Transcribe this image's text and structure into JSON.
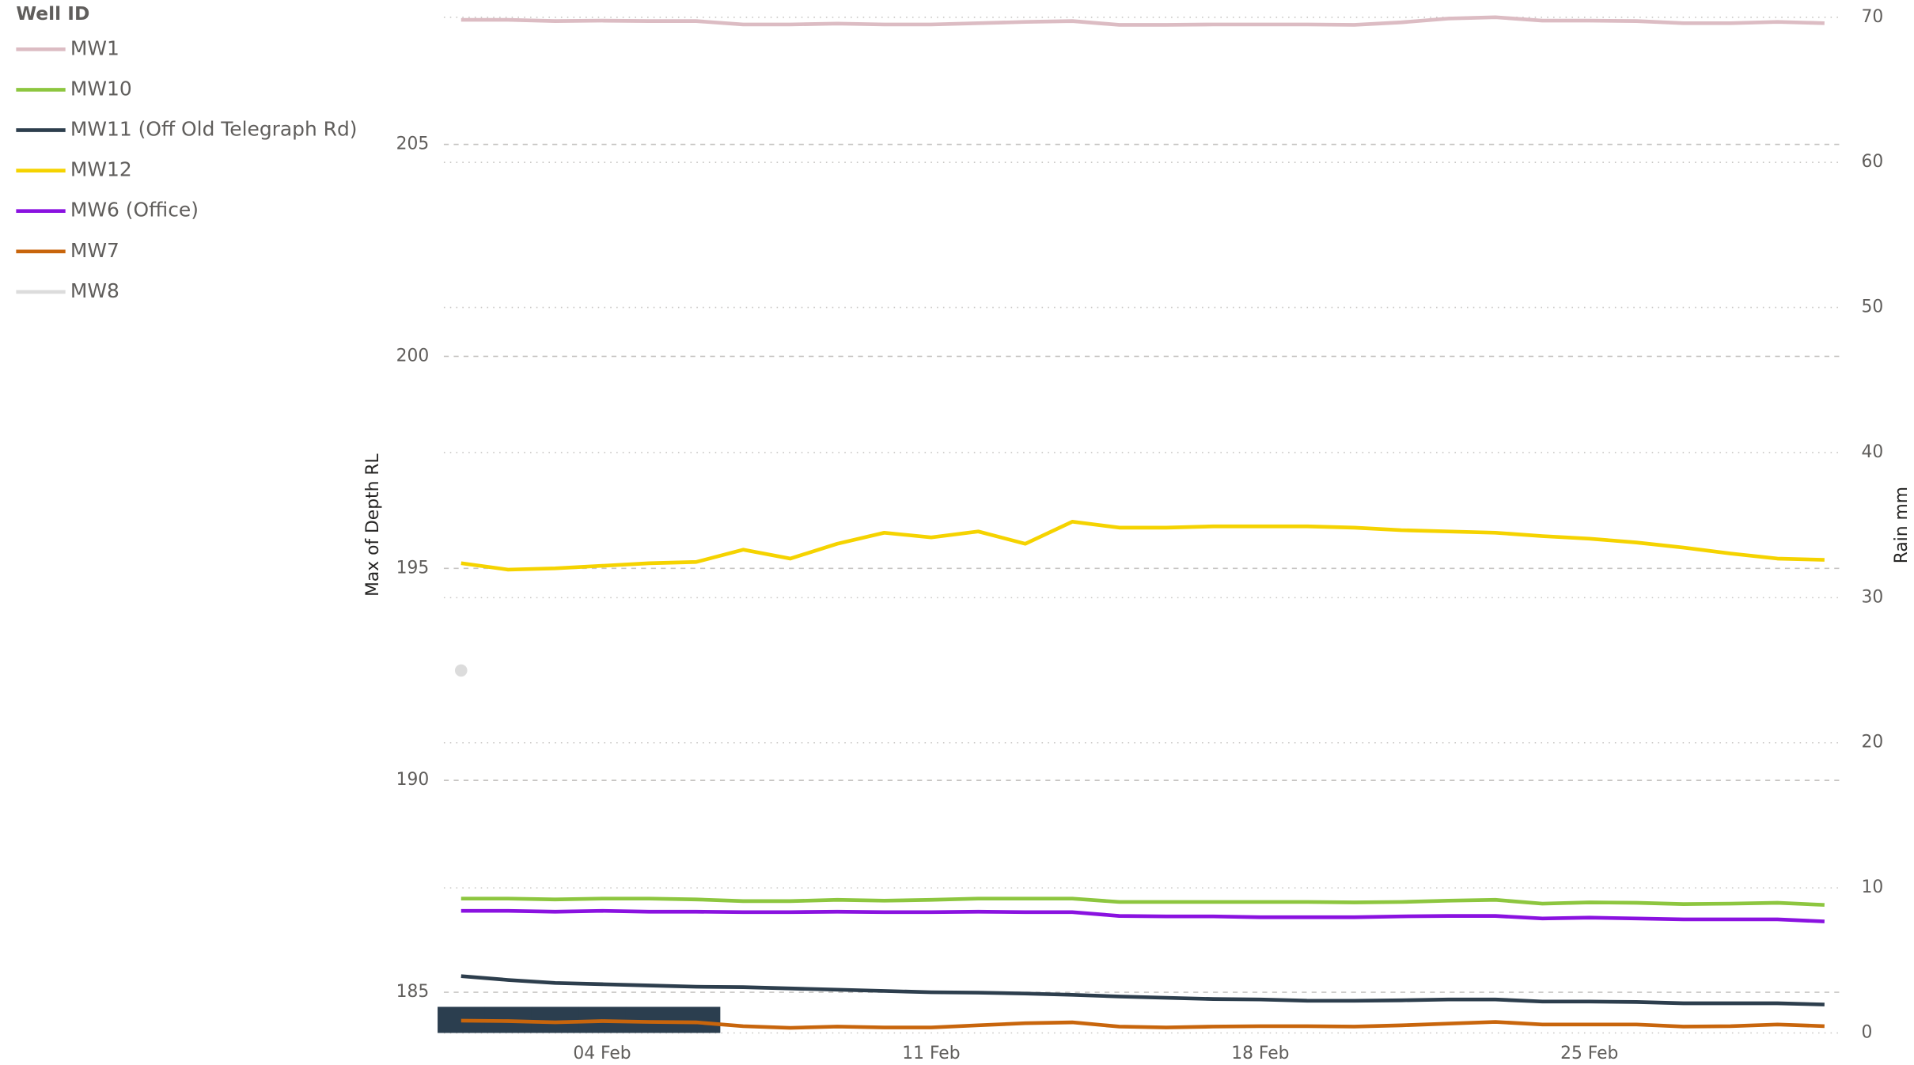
{
  "chart_data": {
    "type": "line",
    "legend_title": "Well ID",
    "ylabel": "Max of Depth RL",
    "y2label": "Rain mm",
    "categories": [
      null,
      null,
      null,
      "04 Feb",
      null,
      null,
      null,
      null,
      null,
      null,
      "11 Feb",
      null,
      null,
      null,
      null,
      null,
      null,
      "18 Feb",
      null,
      null,
      null,
      null,
      null,
      null,
      "25 Feb",
      null,
      null,
      null,
      null,
      null
    ],
    "ylim": [
      184.04,
      208
    ],
    "yticks": [
      185,
      190,
      195,
      200,
      205
    ],
    "y2lim": [
      0,
      70
    ],
    "y2ticks": [
      0,
      10,
      20,
      30,
      40,
      50,
      60,
      70
    ],
    "grid": true,
    "legend": "top-left",
    "series": [
      {
        "name": "MW1",
        "color": "#dcbcc3",
        "values": [
          207.94,
          207.94,
          207.91,
          207.92,
          207.91,
          207.91,
          207.83,
          207.83,
          207.85,
          207.83,
          207.83,
          207.86,
          207.89,
          207.91,
          207.82,
          207.82,
          207.83,
          207.83,
          207.83,
          207.82,
          207.88,
          207.97,
          208.0,
          207.92,
          207.92,
          207.91,
          207.86,
          207.86,
          207.89,
          207.86
        ]
      },
      {
        "name": "MW10",
        "color": "#8dc63f",
        "values": [
          187.21,
          187.21,
          187.19,
          187.21,
          187.21,
          187.19,
          187.15,
          187.15,
          187.18,
          187.16,
          187.18,
          187.21,
          187.21,
          187.21,
          187.13,
          187.13,
          187.13,
          187.13,
          187.13,
          187.12,
          187.13,
          187.16,
          187.18,
          187.09,
          187.12,
          187.11,
          187.08,
          187.09,
          187.11,
          187.06
        ]
      },
      {
        "name": "MW11 (Off Old Telegraph Rd)",
        "color": "#2d3e4d",
        "values": [
          185.38,
          185.29,
          185.22,
          185.19,
          185.16,
          185.13,
          185.12,
          185.09,
          185.06,
          185.03,
          185.0,
          184.99,
          184.97,
          184.94,
          184.9,
          184.87,
          184.84,
          184.83,
          184.8,
          184.8,
          184.81,
          184.83,
          184.83,
          184.78,
          184.78,
          184.77,
          184.74,
          184.74,
          184.74,
          184.71
        ]
      },
      {
        "name": "MW12",
        "color": "#f5d300",
        "values": [
          195.12,
          194.97,
          195.0,
          195.06,
          195.12,
          195.15,
          195.44,
          195.23,
          195.58,
          195.84,
          195.73,
          195.87,
          195.58,
          196.1,
          195.96,
          195.96,
          195.99,
          195.99,
          195.99,
          195.96,
          195.9,
          195.87,
          195.84,
          195.76,
          195.7,
          195.61,
          195.49,
          195.35,
          195.23,
          195.2
        ]
      },
      {
        "name": "MW6 (Office)",
        "color": "#8a12e0",
        "values": [
          186.92,
          186.92,
          186.9,
          186.92,
          186.9,
          186.9,
          186.89,
          186.89,
          186.9,
          186.89,
          186.89,
          186.9,
          186.89,
          186.89,
          186.8,
          186.79,
          186.79,
          186.77,
          186.77,
          186.77,
          186.79,
          186.8,
          186.8,
          186.74,
          186.76,
          186.74,
          186.72,
          186.72,
          186.72,
          186.67
        ]
      },
      {
        "name": "MW7",
        "color": "#c8650c",
        "values": [
          184.33,
          184.32,
          184.29,
          184.32,
          184.3,
          184.29,
          184.2,
          184.16,
          184.19,
          184.17,
          184.17,
          184.22,
          184.27,
          184.29,
          184.19,
          184.17,
          184.19,
          184.2,
          184.2,
          184.19,
          184.22,
          184.26,
          184.3,
          184.24,
          184.24,
          184.24,
          184.19,
          184.2,
          184.24,
          184.2
        ]
      },
      {
        "name": "MW8",
        "color": "#dcdcdc",
        "values": [
          192.59,
          null,
          null,
          null,
          null,
          null,
          null,
          null,
          null,
          null,
          null,
          null,
          null,
          null,
          null,
          null,
          null,
          null,
          null,
          null,
          null,
          null,
          null,
          null,
          null,
          null,
          null,
          null,
          null,
          null
        ]
      }
    ],
    "bars": {
      "axis": "y2",
      "color": "#2b3e4f",
      "values": [
        1.8,
        1.8,
        1.8,
        1.8,
        1.8,
        1.8,
        null,
        null,
        null,
        null,
        null,
        null,
        null,
        null,
        null,
        null,
        null,
        null,
        null,
        null,
        null,
        null,
        null,
        null,
        null,
        null,
        null,
        null,
        null,
        null
      ]
    }
  }
}
